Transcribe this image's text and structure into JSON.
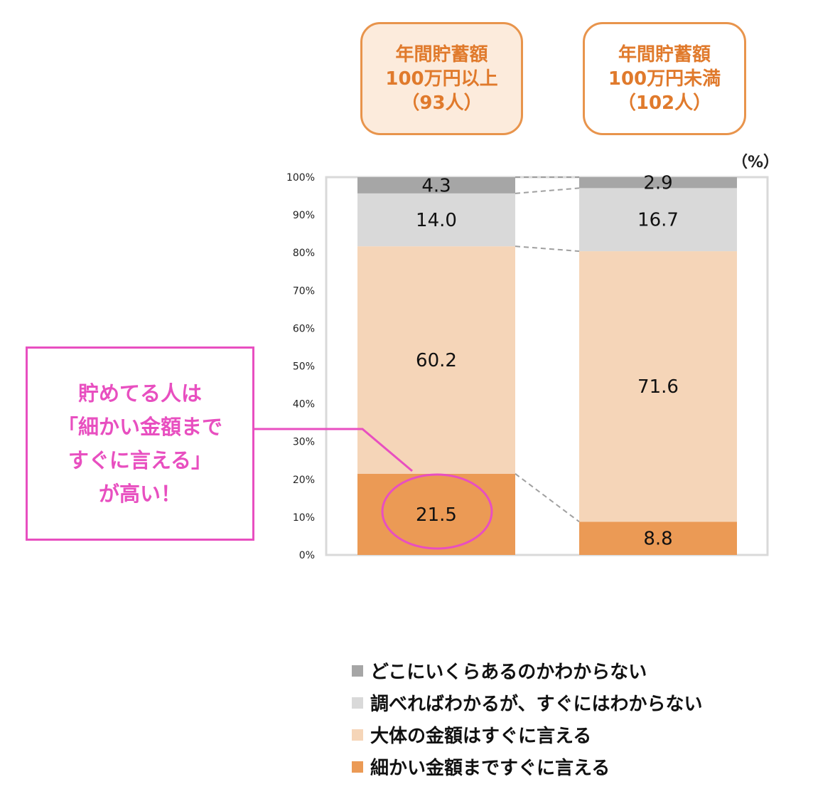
{
  "groups": [
    {
      "line1": "年間貯蓄額",
      "line2": "100万円以上",
      "line3": "（93人）"
    },
    {
      "line1": "年間貯蓄額",
      "line2": "100万円未満",
      "line3": "（102人）"
    }
  ],
  "unit_label": "（%）",
  "callout": {
    "lines": [
      "貯めてる人は",
      "「細かい金額まで",
      "すぐに言える」",
      "が高い！"
    ]
  },
  "chart_data": {
    "type": "bar",
    "stacked": true,
    "categories": [
      "年間貯蓄額 100万円以上（93人）",
      "年間貯蓄額 100万円未満（102人）"
    ],
    "series": [
      {
        "name": "細かい金額まですぐに言える",
        "values": [
          21.5,
          8.8
        ],
        "color": "#eb9a55"
      },
      {
        "name": "大体の金額はすぐに言える",
        "values": [
          60.2,
          71.6
        ],
        "color": "#f5d5b8"
      },
      {
        "name": "調べればわかるが、すぐにはわからない",
        "values": [
          14.0,
          16.7
        ],
        "color": "#d9d9d9"
      },
      {
        "name": "どこにいくらあるのかわからない",
        "values": [
          4.3,
          2.9
        ],
        "color": "#a6a6a6"
      }
    ],
    "ylim": [
      0,
      100
    ],
    "yticks": [
      "0%",
      "10%",
      "20%",
      "30%",
      "40%",
      "50%",
      "60%",
      "70%",
      "80%",
      "90%",
      "100%"
    ],
    "legend_position": "bottom",
    "grid": false
  }
}
